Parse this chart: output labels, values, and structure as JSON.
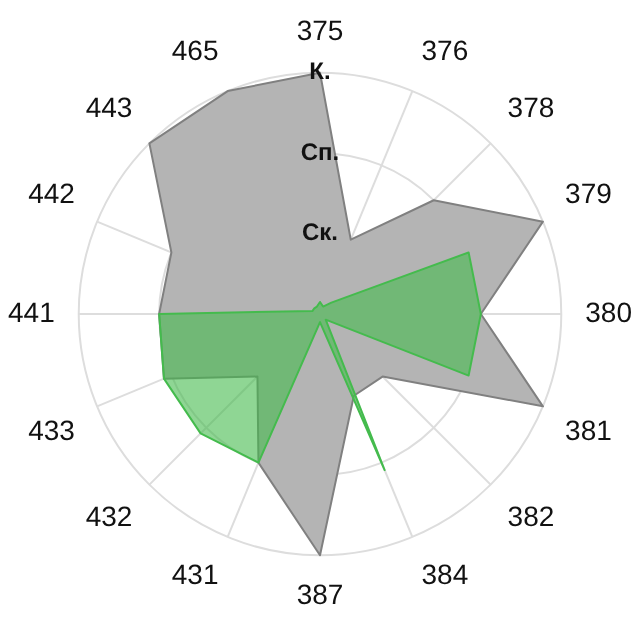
{
  "chart_data": {
    "type": "radar",
    "categories": [
      "375",
      "376",
      "378",
      "379",
      "380",
      "381",
      "382",
      "384",
      "387",
      "431",
      "432",
      "433",
      "441",
      "442",
      "443",
      "465"
    ],
    "series": [
      {
        "color": "#b4b4b4",
        "values": [
          3,
          1,
          2,
          3,
          2,
          3,
          1.1,
          1.1,
          3,
          2,
          1.1,
          2.1,
          2,
          2,
          3,
          3
        ]
      },
      {
        "color": "#44bb4d",
        "values": [
          0.15,
          0.1,
          0.2,
          2,
          2,
          2,
          0.1,
          2.1,
          0.1,
          2,
          2.1,
          2.1,
          2,
          0.1,
          0.1,
          0.1
        ]
      }
    ],
    "ylim": [
      0,
      3
    ],
    "yticks": [
      {
        "value": 1,
        "label": "Ск."
      },
      {
        "value": 2,
        "label": "Сп."
      },
      {
        "value": 3,
        "label": "К."
      }
    ],
    "grid": true,
    "legend": false,
    "marker": "none"
  }
}
